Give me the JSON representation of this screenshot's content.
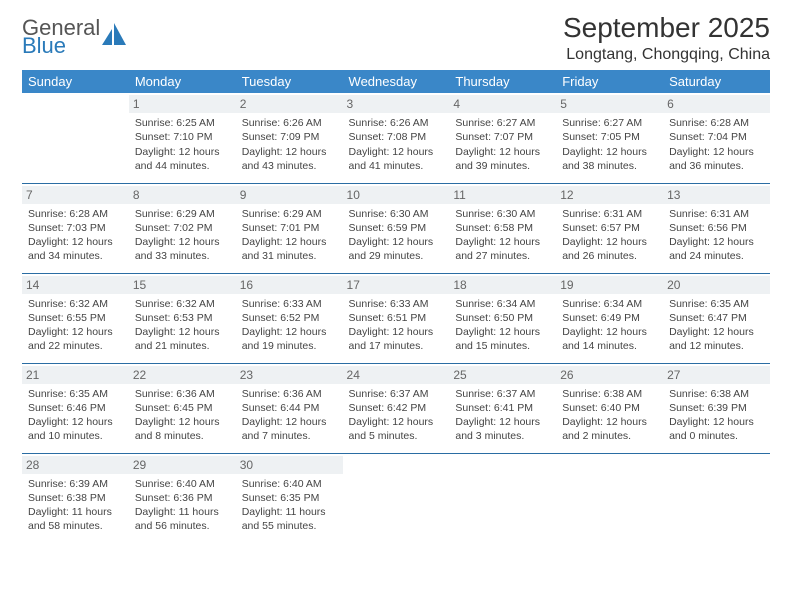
{
  "logo": {
    "line1": "General",
    "line2": "Blue",
    "icon_color": "#2a7ab9"
  },
  "title": "September 2025",
  "location": "Longtang, Chongqing, China",
  "header_bg": "#3a87c8",
  "header_fg": "#ffffff",
  "daynum_bg": "#eef1f3",
  "sep_color": "#2a6da3",
  "weekdays": [
    "Sunday",
    "Monday",
    "Tuesday",
    "Wednesday",
    "Thursday",
    "Friday",
    "Saturday"
  ],
  "weeks": [
    [
      {
        "n": "",
        "empty": true
      },
      {
        "n": "1",
        "sunrise": "Sunrise: 6:25 AM",
        "sunset": "Sunset: 7:10 PM",
        "day1": "Daylight: 12 hours",
        "day2": "and 44 minutes."
      },
      {
        "n": "2",
        "sunrise": "Sunrise: 6:26 AM",
        "sunset": "Sunset: 7:09 PM",
        "day1": "Daylight: 12 hours",
        "day2": "and 43 minutes."
      },
      {
        "n": "3",
        "sunrise": "Sunrise: 6:26 AM",
        "sunset": "Sunset: 7:08 PM",
        "day1": "Daylight: 12 hours",
        "day2": "and 41 minutes."
      },
      {
        "n": "4",
        "sunrise": "Sunrise: 6:27 AM",
        "sunset": "Sunset: 7:07 PM",
        "day1": "Daylight: 12 hours",
        "day2": "and 39 minutes."
      },
      {
        "n": "5",
        "sunrise": "Sunrise: 6:27 AM",
        "sunset": "Sunset: 7:05 PM",
        "day1": "Daylight: 12 hours",
        "day2": "and 38 minutes."
      },
      {
        "n": "6",
        "sunrise": "Sunrise: 6:28 AM",
        "sunset": "Sunset: 7:04 PM",
        "day1": "Daylight: 12 hours",
        "day2": "and 36 minutes."
      }
    ],
    [
      {
        "n": "7",
        "sunrise": "Sunrise: 6:28 AM",
        "sunset": "Sunset: 7:03 PM",
        "day1": "Daylight: 12 hours",
        "day2": "and 34 minutes."
      },
      {
        "n": "8",
        "sunrise": "Sunrise: 6:29 AM",
        "sunset": "Sunset: 7:02 PM",
        "day1": "Daylight: 12 hours",
        "day2": "and 33 minutes."
      },
      {
        "n": "9",
        "sunrise": "Sunrise: 6:29 AM",
        "sunset": "Sunset: 7:01 PM",
        "day1": "Daylight: 12 hours",
        "day2": "and 31 minutes."
      },
      {
        "n": "10",
        "sunrise": "Sunrise: 6:30 AM",
        "sunset": "Sunset: 6:59 PM",
        "day1": "Daylight: 12 hours",
        "day2": "and 29 minutes."
      },
      {
        "n": "11",
        "sunrise": "Sunrise: 6:30 AM",
        "sunset": "Sunset: 6:58 PM",
        "day1": "Daylight: 12 hours",
        "day2": "and 27 minutes."
      },
      {
        "n": "12",
        "sunrise": "Sunrise: 6:31 AM",
        "sunset": "Sunset: 6:57 PM",
        "day1": "Daylight: 12 hours",
        "day2": "and 26 minutes."
      },
      {
        "n": "13",
        "sunrise": "Sunrise: 6:31 AM",
        "sunset": "Sunset: 6:56 PM",
        "day1": "Daylight: 12 hours",
        "day2": "and 24 minutes."
      }
    ],
    [
      {
        "n": "14",
        "sunrise": "Sunrise: 6:32 AM",
        "sunset": "Sunset: 6:55 PM",
        "day1": "Daylight: 12 hours",
        "day2": "and 22 minutes."
      },
      {
        "n": "15",
        "sunrise": "Sunrise: 6:32 AM",
        "sunset": "Sunset: 6:53 PM",
        "day1": "Daylight: 12 hours",
        "day2": "and 21 minutes."
      },
      {
        "n": "16",
        "sunrise": "Sunrise: 6:33 AM",
        "sunset": "Sunset: 6:52 PM",
        "day1": "Daylight: 12 hours",
        "day2": "and 19 minutes."
      },
      {
        "n": "17",
        "sunrise": "Sunrise: 6:33 AM",
        "sunset": "Sunset: 6:51 PM",
        "day1": "Daylight: 12 hours",
        "day2": "and 17 minutes."
      },
      {
        "n": "18",
        "sunrise": "Sunrise: 6:34 AM",
        "sunset": "Sunset: 6:50 PM",
        "day1": "Daylight: 12 hours",
        "day2": "and 15 minutes."
      },
      {
        "n": "19",
        "sunrise": "Sunrise: 6:34 AM",
        "sunset": "Sunset: 6:49 PM",
        "day1": "Daylight: 12 hours",
        "day2": "and 14 minutes."
      },
      {
        "n": "20",
        "sunrise": "Sunrise: 6:35 AM",
        "sunset": "Sunset: 6:47 PM",
        "day1": "Daylight: 12 hours",
        "day2": "and 12 minutes."
      }
    ],
    [
      {
        "n": "21",
        "sunrise": "Sunrise: 6:35 AM",
        "sunset": "Sunset: 6:46 PM",
        "day1": "Daylight: 12 hours",
        "day2": "and 10 minutes."
      },
      {
        "n": "22",
        "sunrise": "Sunrise: 6:36 AM",
        "sunset": "Sunset: 6:45 PM",
        "day1": "Daylight: 12 hours",
        "day2": "and 8 minutes."
      },
      {
        "n": "23",
        "sunrise": "Sunrise: 6:36 AM",
        "sunset": "Sunset: 6:44 PM",
        "day1": "Daylight: 12 hours",
        "day2": "and 7 minutes."
      },
      {
        "n": "24",
        "sunrise": "Sunrise: 6:37 AM",
        "sunset": "Sunset: 6:42 PM",
        "day1": "Daylight: 12 hours",
        "day2": "and 5 minutes."
      },
      {
        "n": "25",
        "sunrise": "Sunrise: 6:37 AM",
        "sunset": "Sunset: 6:41 PM",
        "day1": "Daylight: 12 hours",
        "day2": "and 3 minutes."
      },
      {
        "n": "26",
        "sunrise": "Sunrise: 6:38 AM",
        "sunset": "Sunset: 6:40 PM",
        "day1": "Daylight: 12 hours",
        "day2": "and 2 minutes."
      },
      {
        "n": "27",
        "sunrise": "Sunrise: 6:38 AM",
        "sunset": "Sunset: 6:39 PM",
        "day1": "Daylight: 12 hours",
        "day2": "and 0 minutes."
      }
    ],
    [
      {
        "n": "28",
        "sunrise": "Sunrise: 6:39 AM",
        "sunset": "Sunset: 6:38 PM",
        "day1": "Daylight: 11 hours",
        "day2": "and 58 minutes."
      },
      {
        "n": "29",
        "sunrise": "Sunrise: 6:40 AM",
        "sunset": "Sunset: 6:36 PM",
        "day1": "Daylight: 11 hours",
        "day2": "and 56 minutes."
      },
      {
        "n": "30",
        "sunrise": "Sunrise: 6:40 AM",
        "sunset": "Sunset: 6:35 PM",
        "day1": "Daylight: 11 hours",
        "day2": "and 55 minutes."
      },
      {
        "n": "",
        "empty": true
      },
      {
        "n": "",
        "empty": true
      },
      {
        "n": "",
        "empty": true
      },
      {
        "n": "",
        "empty": true
      }
    ]
  ]
}
